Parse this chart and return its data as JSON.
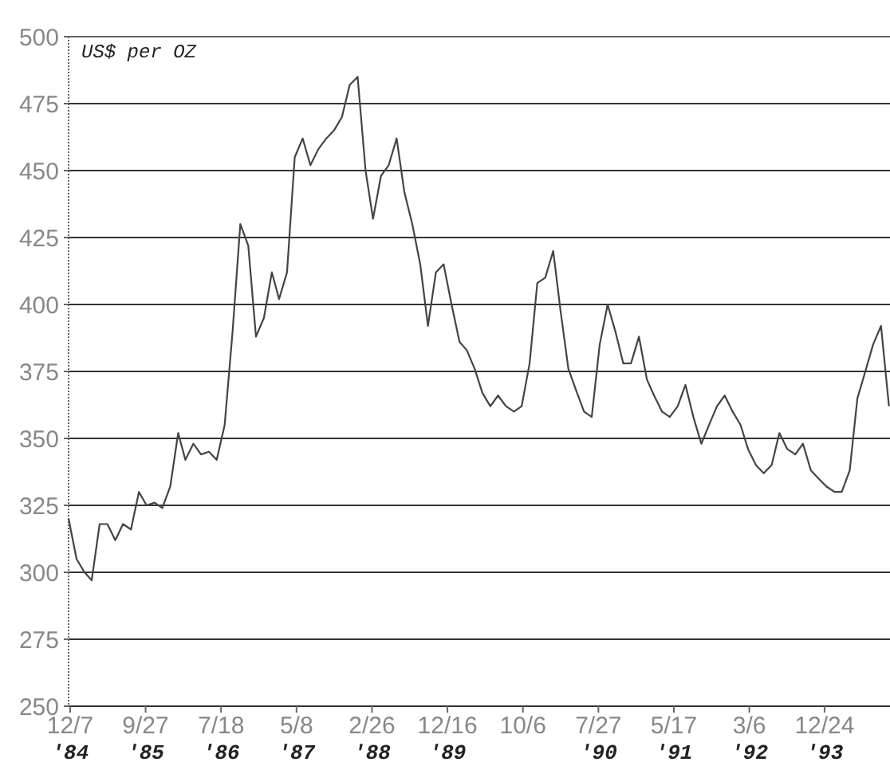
{
  "chart_data": {
    "type": "line",
    "ylabel": "US$ per OZ",
    "x": [
      "1984-12",
      "1985-01",
      "1985-02",
      "1985-03",
      "1985-04",
      "1985-05",
      "1985-06",
      "1985-07",
      "1985-08",
      "1985-09",
      "1985-10",
      "1985-11",
      "1985-12",
      "1986-01",
      "1986-02",
      "1986-03",
      "1986-04",
      "1986-05",
      "1986-06",
      "1986-07",
      "1986-08",
      "1986-09",
      "1986-10",
      "1986-11",
      "1986-12",
      "1987-01",
      "1987-02",
      "1987-03",
      "1987-04",
      "1987-05",
      "1987-06",
      "1987-07",
      "1987-08",
      "1987-09",
      "1987-10",
      "1987-11",
      "1987-12",
      "1988-01",
      "1988-02",
      "1988-03",
      "1988-04",
      "1988-05",
      "1988-06",
      "1988-07",
      "1988-08",
      "1988-09",
      "1988-10",
      "1988-11",
      "1988-12",
      "1989-01",
      "1989-02",
      "1989-03",
      "1989-04",
      "1989-05",
      "1989-06",
      "1989-07",
      "1989-08",
      "1989-09",
      "1989-10",
      "1989-11",
      "1989-12",
      "1990-01",
      "1990-02",
      "1990-03",
      "1990-04",
      "1990-05",
      "1990-06",
      "1990-07",
      "1990-08",
      "1990-09",
      "1990-10",
      "1990-11",
      "1990-12",
      "1991-01",
      "1991-02",
      "1991-03",
      "1991-04",
      "1991-05",
      "1991-06",
      "1991-07",
      "1991-08",
      "1991-09",
      "1991-10",
      "1991-11",
      "1991-12",
      "1992-01",
      "1992-02",
      "1992-03",
      "1992-04",
      "1992-05",
      "1992-06",
      "1992-07",
      "1992-08",
      "1992-09",
      "1992-10",
      "1992-11",
      "1992-12",
      "1993-01",
      "1993-02",
      "1993-03",
      "1993-04",
      "1993-05",
      "1993-06",
      "1993-07",
      "1993-08",
      "1993-09"
    ],
    "series": [
      {
        "color": "#444444",
        "values": [
          320,
          305,
          300,
          297,
          318,
          318,
          312,
          318,
          316,
          330,
          325,
          326,
          324,
          332,
          352,
          342,
          348,
          344,
          345,
          342,
          355,
          390,
          430,
          422,
          388,
          395,
          412,
          402,
          412,
          455,
          462,
          452,
          458,
          462,
          465,
          470,
          482,
          485,
          450,
          432,
          448,
          452,
          462,
          442,
          430,
          415,
          392,
          412,
          415,
          400,
          386,
          383,
          376,
          367,
          362,
          366,
          362,
          360,
          362,
          378,
          408,
          410,
          420,
          398,
          376,
          368,
          360,
          358,
          385,
          400,
          390,
          378,
          378,
          388,
          372,
          366,
          360,
          358,
          362,
          370,
          358,
          348,
          355,
          362,
          366,
          360,
          355,
          346,
          340,
          337,
          340,
          352,
          346,
          344,
          348,
          338,
          335,
          332,
          330,
          330,
          338,
          365,
          375,
          385,
          392,
          362
        ]
      }
    ],
    "xlim": [
      "1984-12-01",
      "1993-09-05"
    ],
    "xticks": [
      {
        "value": "1984-12-07",
        "label": "12/7\n'84"
      },
      {
        "value": "1985-09-27",
        "label": "9/27\n'85"
      },
      {
        "value": "1986-07-18",
        "label": "7/18\n'86"
      },
      {
        "value": "1987-05-08",
        "label": "5/8\n'87"
      },
      {
        "value": "1988-02-26",
        "label": "2/26\n'88"
      },
      {
        "value": "1988-12-16",
        "label": "12/16\n'89"
      },
      {
        "value": "1989-10-06",
        "label": "10/6"
      },
      {
        "value": "1990-07-27",
        "label": "7/27\n'90"
      },
      {
        "value": "1991-05-17",
        "label": "5/17\n'91"
      },
      {
        "value": "1992-03-06",
        "label": "3/6\n'92"
      },
      {
        "value": "1992-12-24",
        "label": "12/24\n'93"
      }
    ],
    "ylim": [
      250,
      500
    ],
    "yticks": [
      250,
      275,
      300,
      325,
      350,
      375,
      400,
      425,
      450,
      475,
      500
    ],
    "grid": "y",
    "line_style": "solid",
    "marker": "none"
  }
}
